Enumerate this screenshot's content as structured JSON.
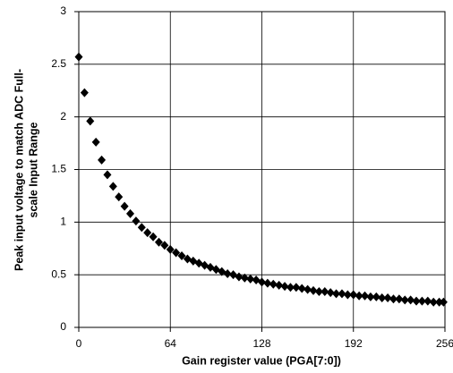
{
  "chart_data": {
    "type": "scatter",
    "ylabel": [
      "Peak input voltage to match ADC Full-",
      "scale Input Range"
    ],
    "xlabel": "Gain register value (PGA[7:0])",
    "x": [
      0,
      4,
      8,
      12,
      16,
      20,
      24,
      28,
      32,
      36,
      40,
      44,
      48,
      52,
      56,
      60,
      64,
      68,
      72,
      76,
      80,
      84,
      88,
      92,
      96,
      100,
      104,
      108,
      112,
      116,
      120,
      124,
      128,
      132,
      136,
      140,
      144,
      148,
      152,
      156,
      160,
      164,
      168,
      172,
      176,
      180,
      184,
      188,
      192,
      196,
      200,
      204,
      208,
      212,
      216,
      220,
      224,
      228,
      232,
      236,
      240,
      244,
      248,
      252,
      255
    ],
    "values": [
      2.57,
      2.23,
      1.96,
      1.76,
      1.59,
      1.45,
      1.34,
      1.24,
      1.15,
      1.08,
      1.01,
      0.95,
      0.9,
      0.86,
      0.81,
      0.78,
      0.74,
      0.71,
      0.68,
      0.65,
      0.63,
      0.61,
      0.59,
      0.57,
      0.55,
      0.53,
      0.51,
      0.5,
      0.48,
      0.47,
      0.46,
      0.45,
      0.43,
      0.42,
      0.41,
      0.4,
      0.39,
      0.38,
      0.38,
      0.37,
      0.36,
      0.35,
      0.34,
      0.34,
      0.33,
      0.32,
      0.32,
      0.31,
      0.31,
      0.3,
      0.3,
      0.29,
      0.29,
      0.28,
      0.28,
      0.27,
      0.27,
      0.26,
      0.26,
      0.25,
      0.25,
      0.25,
      0.24,
      0.24,
      0.24
    ],
    "color": "#000000",
    "xlim": [
      0,
      256
    ],
    "xticks": [
      0,
      64,
      128,
      192,
      256
    ],
    "ylim": [
      0,
      3
    ],
    "yticks": [
      0,
      0.5,
      1,
      1.5,
      2,
      2.5,
      3
    ],
    "grid": true
  }
}
